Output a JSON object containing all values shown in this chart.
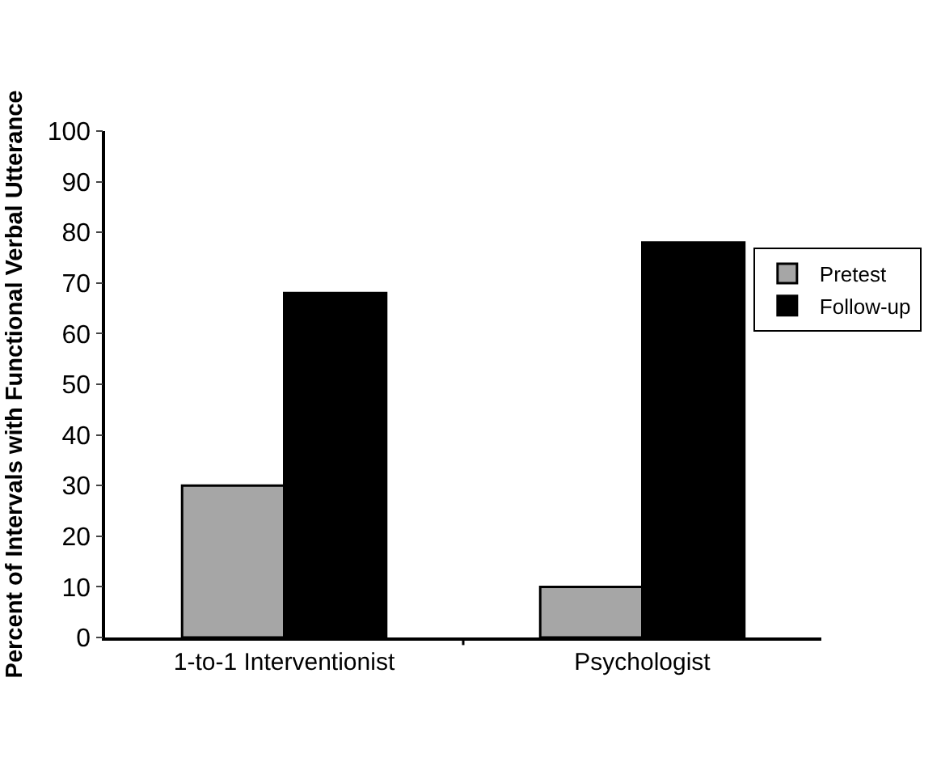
{
  "chart_data": {
    "type": "bar",
    "ylabel": "Percent of Intervals with Functional Verbal Utterance",
    "categories": [
      "1-to-1 Interventionist",
      "Psychologist"
    ],
    "series": [
      {
        "name": "Pretest",
        "color": "#a6a6a6",
        "values": [
          30,
          10
        ]
      },
      {
        "name": "Follow-up",
        "color": "#000000",
        "values": [
          68,
          78
        ]
      }
    ],
    "ylim": [
      0,
      100
    ],
    "yticks": [
      0,
      10,
      20,
      30,
      40,
      50,
      60,
      70,
      80,
      90,
      100
    ],
    "grid": false,
    "legend": "right"
  }
}
